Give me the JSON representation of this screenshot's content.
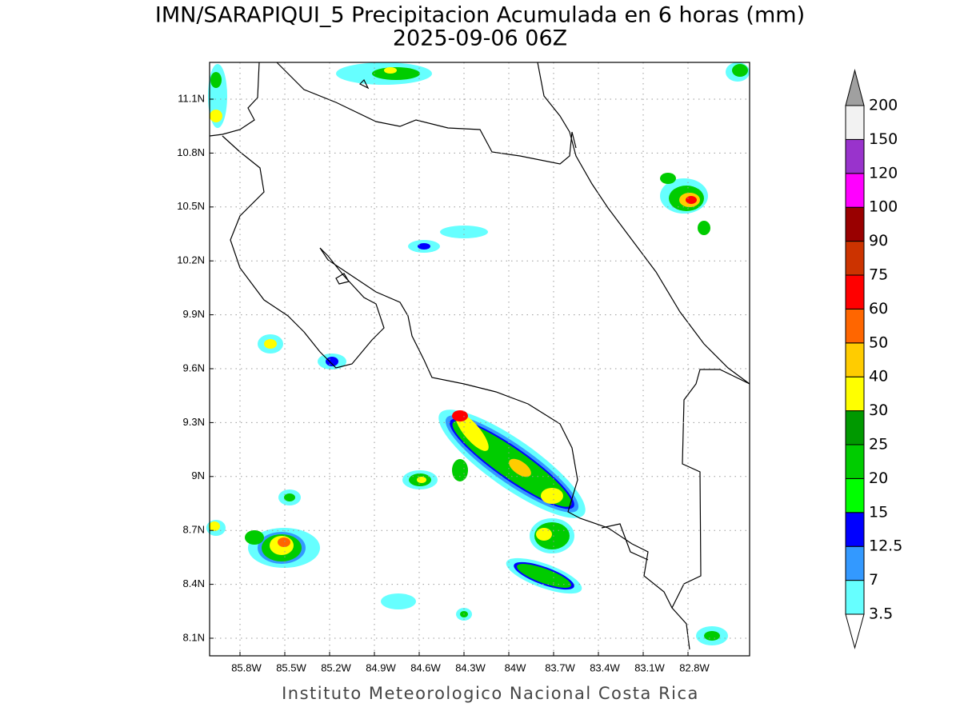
{
  "title": [
    "IMN/SARAPIQUI_5 Precipitacion Acumulada en 6 horas (mm)",
    "2025-09-06 06Z"
  ],
  "lat_labels": [
    "11.1N",
    "10.8N",
    "10.5N",
    "10.2N",
    "9.9N",
    "9.6N",
    "9.3N",
    "9N",
    "8.7N",
    "8.4N",
    "8.1N"
  ],
  "lon_labels": [
    "85.8W",
    "85.5W",
    "85.2W",
    "84.9W",
    "84.6W",
    "84.3W",
    "84W",
    "83.7W",
    "83.4W",
    "83.1W",
    "82.8W"
  ],
  "colorbar": {
    "labels": [
      "3.5",
      "7",
      "12.5",
      "15",
      "20",
      "25",
      "30",
      "40",
      "50",
      "60",
      "75",
      "90",
      "100",
      "120",
      "150",
      "200"
    ],
    "colors": [
      "#66ffff",
      "#3399ff",
      "#0000ff",
      "#00ff00",
      "#00cc00",
      "#009900",
      "#ffff00",
      "#ffcc00",
      "#ff6600",
      "#ff0000",
      "#cc3300",
      "#990000",
      "#ff00ff",
      "#9933cc",
      "#f2f2f2"
    ],
    "over_color": "#a0a0a0",
    "under_color": "#ffffff"
  },
  "footer": "Instituto Meteorologico Nacional Costa Rica"
}
